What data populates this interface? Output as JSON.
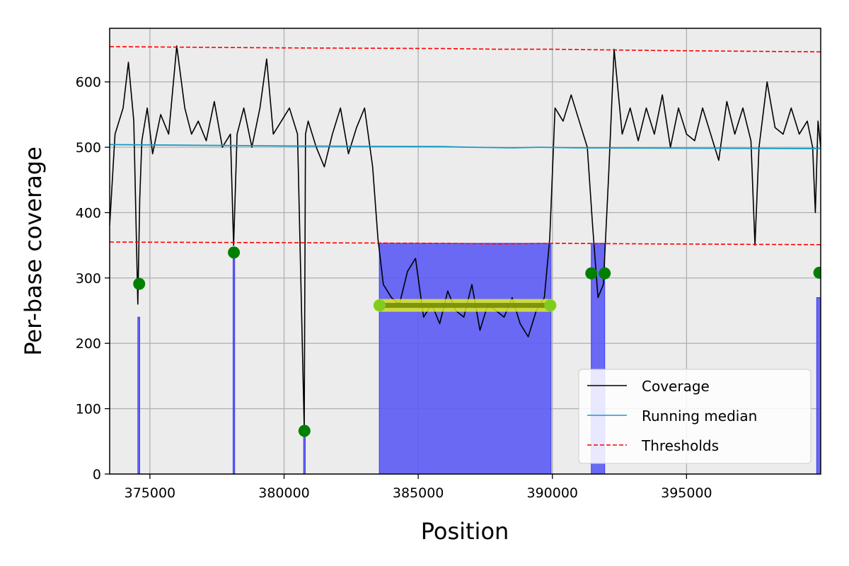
{
  "chart_data": {
    "type": "line",
    "xlabel": "Position",
    "ylabel": "Per-base coverage",
    "xlim": [
      373500,
      400000
    ],
    "ylim": [
      0,
      682
    ],
    "xticks": [
      375000,
      380000,
      385000,
      390000,
      395000
    ],
    "xtick_labels": [
      "375000",
      "380000",
      "385000",
      "390000",
      "395000"
    ],
    "yticks": [
      0,
      100,
      200,
      300,
      400,
      500,
      600
    ],
    "ytick_labels": [
      "0",
      "100",
      "200",
      "300",
      "400",
      "500",
      "600"
    ],
    "grid": true,
    "legend_position": "lower-right",
    "colors": {
      "coverage": "#000000",
      "running_median": "#1a9ac6",
      "thresholds": "#ff0000",
      "low_region_fill": "#5b5bf5",
      "markers": "#008000",
      "segment_markers": "#7fcc1f",
      "segment_highlight": "#e6f21a",
      "plot_background": "#ececec"
    },
    "series": [
      {
        "name": "Coverage",
        "x": [
          373500,
          373700,
          374000,
          374200,
          374400,
          374550,
          374620,
          374700,
          374900,
          375100,
          375400,
          375700,
          376000,
          376300,
          376550,
          376800,
          377100,
          377400,
          377700,
          378000,
          378120,
          378250,
          378500,
          378800,
          379100,
          379350,
          379600,
          379900,
          380200,
          380500,
          380750,
          380800,
          380900,
          381200,
          381500,
          381800,
          382100,
          382400,
          382700,
          383000,
          383300,
          383500,
          383700,
          384000,
          384300,
          384600,
          384900,
          385200,
          385500,
          385800,
          386100,
          386400,
          386700,
          387000,
          387300,
          387600,
          387900,
          388200,
          388500,
          388800,
          389100,
          389400,
          389700,
          389900,
          390100,
          390400,
          390700,
          391000,
          391300,
          391500,
          391700,
          391900,
          392100,
          392300,
          392600,
          392900,
          393200,
          393500,
          393800,
          394100,
          394400,
          394700,
          395000,
          395300,
          395600,
          395900,
          396200,
          396500,
          396800,
          397100,
          397400,
          397550,
          397700,
          398000,
          398300,
          398600,
          398900,
          399200,
          399500,
          399700,
          399800,
          399900,
          400000
        ],
        "values": [
          380,
          520,
          560,
          630,
          540,
          260,
          420,
          510,
          560,
          490,
          550,
          520,
          655,
          560,
          520,
          540,
          510,
          570,
          500,
          520,
          350,
          520,
          560,
          500,
          560,
          635,
          520,
          540,
          560,
          520,
          70,
          520,
          540,
          500,
          470,
          520,
          560,
          490,
          530,
          560,
          470,
          360,
          290,
          270,
          260,
          310,
          330,
          240,
          260,
          230,
          280,
          250,
          240,
          290,
          220,
          260,
          250,
          240,
          270,
          230,
          210,
          250,
          270,
          360,
          560,
          540,
          580,
          540,
          500,
          380,
          270,
          290,
          460,
          650,
          520,
          560,
          510,
          560,
          520,
          580,
          500,
          560,
          520,
          510,
          560,
          520,
          480,
          570,
          520,
          560,
          510,
          350,
          500,
          600,
          530,
          520,
          560,
          520,
          540,
          500,
          400,
          540,
          500
        ]
      },
      {
        "name": "Running median",
        "x": [
          373500,
          380000,
          386000,
          387000,
          388500,
          389500,
          391000,
          400000
        ],
        "values": [
          504,
          502,
          501,
          500,
          499,
          500,
          499,
          498
        ]
      },
      {
        "name": "Thresholds",
        "x": [
          373500,
          380000,
          386000,
          388000,
          390000,
          394000,
          400000
        ],
        "values": [
          654,
          652,
          651,
          650,
          650,
          648,
          646
        ]
      },
      {
        "name": "",
        "x": [
          373500,
          380000,
          386000,
          388000,
          390000,
          394000,
          400000
        ],
        "values": [
          355,
          354,
          353,
          352,
          353,
          352,
          351
        ]
      }
    ],
    "low_regions": [
      {
        "start": 374550,
        "end": 374620,
        "top": 240
      },
      {
        "start": 378100,
        "end": 378160,
        "top": 330
      },
      {
        "start": 380730,
        "end": 380790,
        "top": 70
      },
      {
        "start": 383550,
        "end": 389950,
        "top": 353
      },
      {
        "start": 391450,
        "end": 391950,
        "top": 353
      },
      {
        "start": 399850,
        "end": 400000,
        "top": 270
      }
    ],
    "markers": [
      {
        "x": 374600,
        "y": 291
      },
      {
        "x": 378130,
        "y": 339
      },
      {
        "x": 380760,
        "y": 66
      },
      {
        "x": 391450,
        "y": 307
      },
      {
        "x": 391950,
        "y": 307
      },
      {
        "x": 399950,
        "y": 308
      }
    ],
    "segment": {
      "x_start": 383560,
      "x_end": 389920,
      "y": 258
    }
  }
}
